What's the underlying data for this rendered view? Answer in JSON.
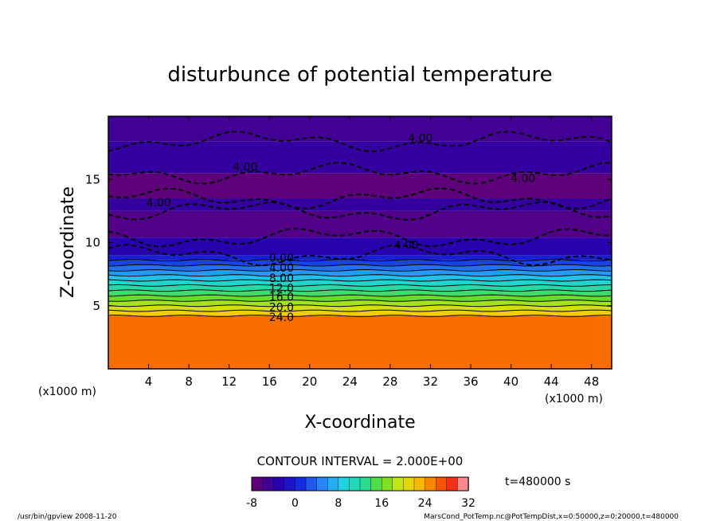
{
  "chart_data": {
    "type": "heatmap",
    "title": "disturbunce of potential temperature",
    "xlabel": "X-coordinate",
    "ylabel": "Z-coordinate",
    "x_unit_left": "(x1000 m)",
    "x_unit_right": "(x1000 m)",
    "xlim": [
      0,
      50
    ],
    "ylim": [
      0,
      20
    ],
    "x_ticks": [
      "4",
      "8",
      "12",
      "16",
      "20",
      "24",
      "28",
      "32",
      "36",
      "40",
      "44",
      "48"
    ],
    "y_ticks": [
      "5",
      "10",
      "15"
    ],
    "contour_interval_text": "CONTOUR INTERVAL = 2.000E+00",
    "time_text": "t=480000 s",
    "colorbar": {
      "min": -8,
      "max": 32,
      "step": 2,
      "tick_labels": [
        "-8",
        "0",
        "8",
        "16",
        "24",
        "32"
      ]
    },
    "contour_labels": [
      {
        "text": "4.00",
        "x": 31,
        "z": 18.3
      },
      {
        "text": "4.00",
        "x": 13.6,
        "z": 16.0
      },
      {
        "text": "4.00",
        "x": 41.2,
        "z": 15.1
      },
      {
        "text": "4.00",
        "x": 5.0,
        "z": 13.2
      },
      {
        "text": "4.00",
        "x": 29.6,
        "z": 9.8
      },
      {
        "text": "0.00",
        "x": 17.2,
        "z": 8.8
      },
      {
        "text": "4.00",
        "x": 17.2,
        "z": 8.0
      },
      {
        "text": "8.00",
        "x": 17.2,
        "z": 7.2
      },
      {
        "text": "12.0",
        "x": 17.2,
        "z": 6.4
      },
      {
        "text": "16.0",
        "x": 17.2,
        "z": 5.7
      },
      {
        "text": "20.0",
        "x": 17.2,
        "z": 4.9
      },
      {
        "text": "24.0",
        "x": 17.2,
        "z": 4.1
      }
    ],
    "layers": [
      {
        "z0": 0,
        "z1": 4.2,
        "value": 26
      },
      {
        "z0": 4.2,
        "z1": 4.6,
        "value": 22
      },
      {
        "z0": 4.6,
        "z1": 5.0,
        "value": 20
      },
      {
        "z0": 5.0,
        "z1": 5.4,
        "value": 18
      },
      {
        "z0": 5.4,
        "z1": 5.8,
        "value": 16
      },
      {
        "z0": 5.8,
        "z1": 6.2,
        "value": 14
      },
      {
        "z0": 6.2,
        "z1": 6.6,
        "value": 12
      },
      {
        "z0": 6.6,
        "z1": 7.0,
        "value": 10
      },
      {
        "z0": 7.0,
        "z1": 7.4,
        "value": 8
      },
      {
        "z0": 7.4,
        "z1": 7.8,
        "value": 6
      },
      {
        "z0": 7.8,
        "z1": 8.2,
        "value": 4
      },
      {
        "z0": 8.2,
        "z1": 8.6,
        "value": 2
      },
      {
        "z0": 8.6,
        "z1": 9.0,
        "value": 0
      },
      {
        "z0": 9.0,
        "z1": 10.4,
        "value": -3
      },
      {
        "z0": 10.4,
        "z1": 12.5,
        "value": -6
      },
      {
        "z0": 12.5,
        "z1": 13.5,
        "value": -4
      },
      {
        "z0": 13.5,
        "z1": 15.5,
        "value": -7
      },
      {
        "z0": 15.5,
        "z1": 18.0,
        "value": -4
      },
      {
        "z0": 18.0,
        "z1": 20.0,
        "value": -5
      }
    ]
  },
  "footer": {
    "left": "/usr/bin/gpview   2008-11-20",
    "right": "MarsCond_PotTemp.nc@PotTempDist,x=0:50000,z=0:20000,t=480000"
  }
}
